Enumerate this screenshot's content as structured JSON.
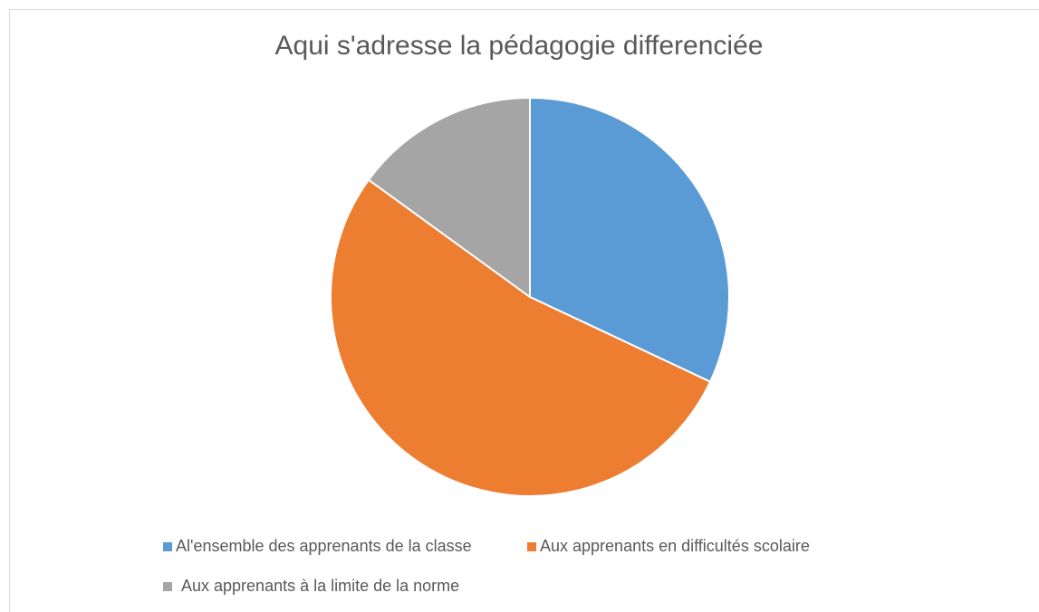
{
  "chart_data": {
    "type": "pie",
    "title": "Aqui s'adresse la pédagogie differenciée",
    "categories": [
      "Al'ensemble des apprenants de la classe",
      "Aux apprenants en difficultés scolaire",
      "Aux apprenants à la limite de la norme"
    ],
    "values": [
      32,
      53,
      15
    ],
    "colors": [
      "#5b9bd5",
      "#ed7d31",
      "#a5a5a5"
    ],
    "legend": "bottom"
  }
}
